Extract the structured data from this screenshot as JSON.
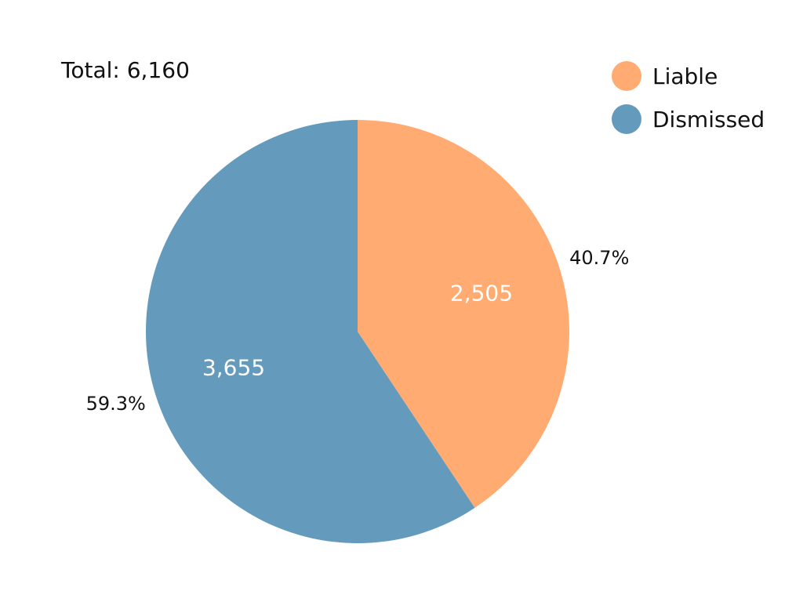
{
  "chart_data": {
    "type": "pie",
    "total_label": "Total: 6,160",
    "start_angle_deg": 0,
    "direction": "clockwise",
    "legend_position": "top-right",
    "slices": [
      {
        "name": "Liable",
        "value": 2505,
        "value_label": "2,505",
        "percent_label": "40.7%",
        "color": "#FFAB71"
      },
      {
        "name": "Dismissed",
        "value": 3655,
        "value_label": "3,655",
        "percent_label": "59.3%",
        "color": "#649BBD"
      }
    ]
  }
}
